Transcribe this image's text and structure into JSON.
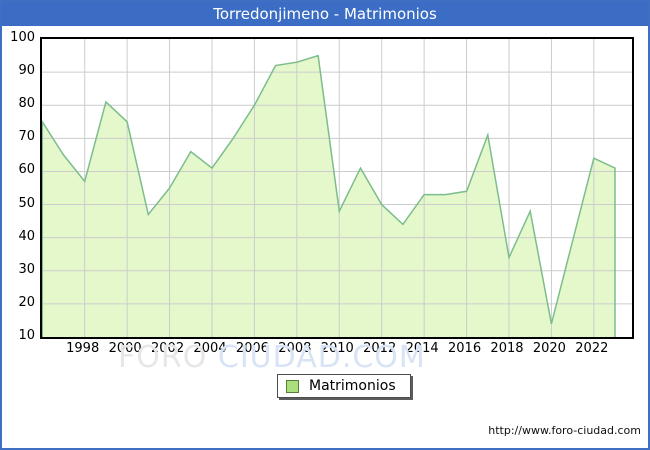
{
  "window": {
    "title": "Torredonjimeno - Matrimonios"
  },
  "chart_data": {
    "type": "area",
    "title": "Torredonjimeno - Matrimonios",
    "x": [
      1996,
      1997,
      1998,
      1999,
      2000,
      2001,
      2002,
      2003,
      2004,
      2005,
      2006,
      2007,
      2008,
      2009,
      2010,
      2011,
      2012,
      2013,
      2014,
      2015,
      2016,
      2017,
      2018,
      2019,
      2020,
      2021,
      2022,
      2023
    ],
    "series": [
      {
        "name": "Matrimonios",
        "values": [
          75,
          65,
          57,
          81,
          75,
          47,
          55,
          66,
          61,
          70,
          80,
          92,
          93,
          95,
          48,
          61,
          50,
          44,
          53,
          53,
          54,
          71,
          34,
          48,
          14,
          39,
          64,
          61
        ]
      }
    ],
    "ylim": [
      10,
      100
    ],
    "y_ticks": [
      100,
      90,
      80,
      70,
      60,
      50,
      40,
      30,
      20,
      10
    ],
    "x_tick_years": [
      1998,
      2000,
      2002,
      2004,
      2006,
      2008,
      2010,
      2012,
      2014,
      2016,
      2018,
      2020,
      2022
    ],
    "grid": true,
    "legend_position": "bottom",
    "colors": {
      "titlebar": "#3b6dc4",
      "frame": "#3e6fc3",
      "area_fill": "#e4f8cb",
      "line": "#7cbd8c",
      "gridline": "#cccccc",
      "legend_swatch": "#abdf7d"
    }
  },
  "legend": {
    "label": "Matrimonios"
  },
  "watermark": {
    "part1": "FORO ",
    "part2": "CIUDAD.COM"
  },
  "footer": {
    "url": "http://www.foro-ciudad.com"
  }
}
